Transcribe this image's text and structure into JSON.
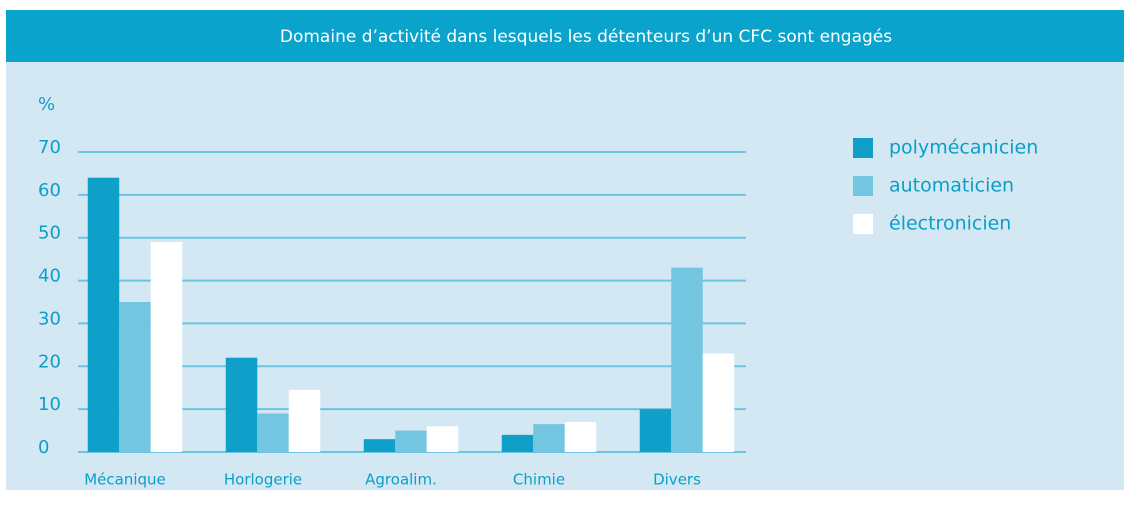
{
  "chart_data": {
    "type": "bar",
    "title": "Domaine d’activité dans lesquels les détenteurs d’un CFC sont engagés",
    "y_label": "%",
    "categories": [
      "Mécanique",
      "Horlogerie",
      "Agroalim.",
      "Chimie",
      "Divers"
    ],
    "series": [
      {
        "name": "polymécanicien",
        "color": "#0f9fc8",
        "values": [
          64,
          22,
          3,
          4,
          10
        ]
      },
      {
        "name": "automaticien",
        "color": "#74c5e0",
        "values": [
          35,
          9,
          5,
          6.5,
          43
        ]
      },
      {
        "name": "électronicien",
        "color": "#ffffff",
        "values": [
          49,
          14.5,
          6,
          7,
          23
        ]
      }
    ],
    "ylim": [
      0,
      70
    ],
    "yticks": [
      0,
      10,
      20,
      30,
      40,
      50,
      60,
      70
    ],
    "grid": true,
    "legend": "right"
  }
}
